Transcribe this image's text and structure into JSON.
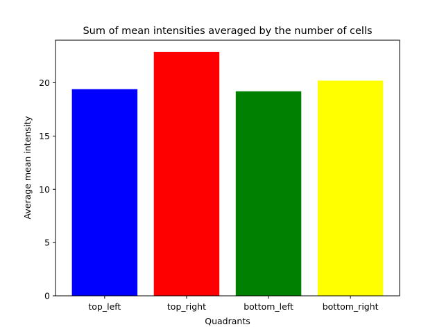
{
  "chart_data": {
    "type": "bar",
    "title": "Sum of mean intensities averaged by the number of cells",
    "xlabel": "Quadrants",
    "ylabel": "Average mean intensity",
    "categories": [
      "top_left",
      "top_right",
      "bottom_left",
      "bottom_right"
    ],
    "values": [
      19.4,
      22.9,
      19.2,
      20.2
    ],
    "colors": [
      "#0000ff",
      "#ff0000",
      "#008000",
      "#ffff00"
    ],
    "ylim": [
      0,
      24
    ],
    "yticks": [
      0,
      5,
      10,
      15,
      20
    ],
    "ytick_labels": [
      "0",
      "5",
      "10",
      "15",
      "20"
    ],
    "grid": false,
    "legend": "none"
  }
}
